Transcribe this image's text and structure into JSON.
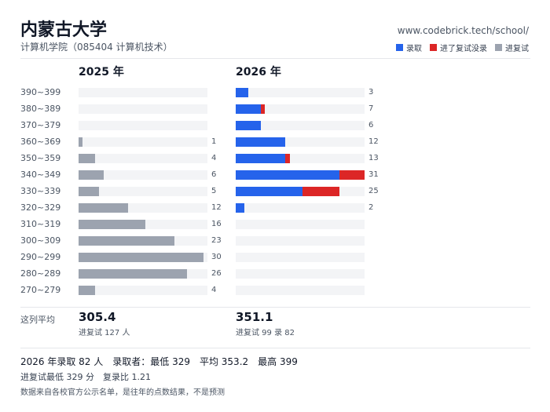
{
  "header": {
    "title": "内蒙古大学",
    "subtitle": "计算机学院（085404 计算机技术）",
    "site": "www.codebrick.tech/school/"
  },
  "legend": [
    {
      "label": "录取",
      "color": "#2563eb"
    },
    {
      "label": "进了复试没录",
      "color": "#dc2626"
    },
    {
      "label": "进复试",
      "color": "#9ca3af"
    }
  ],
  "chart_data": {
    "type": "bar",
    "orientation": "horizontal",
    "categories": [
      "390~399",
      "380~389",
      "370~379",
      "360~369",
      "350~359",
      "340~349",
      "330~339",
      "320~329",
      "310~319",
      "300~309",
      "290~299",
      "280~289",
      "270~279"
    ],
    "panels": [
      {
        "title": "2025 年",
        "series": [
          {
            "name": "进复试",
            "color": "#9ca3af",
            "values": [
              0,
              0,
              0,
              1,
              4,
              6,
              5,
              12,
              16,
              23,
              30,
              26,
              4
            ]
          }
        ],
        "totals": [
          0,
          0,
          0,
          1,
          4,
          6,
          5,
          12,
          16,
          23,
          30,
          26,
          4
        ],
        "xlim": [
          0,
          31
        ]
      },
      {
        "title": "2026 年",
        "series": [
          {
            "name": "录取",
            "color": "#2563eb",
            "values": [
              3,
              6,
              6,
              12,
              12,
              25,
              16,
              2,
              0,
              0,
              0,
              0,
              0
            ]
          },
          {
            "name": "进了复试没录",
            "color": "#dc2626",
            "values": [
              0,
              1,
              0,
              0,
              1,
              6,
              9,
              0,
              0,
              0,
              0,
              0,
              0
            ]
          }
        ],
        "totals": [
          3,
          7,
          6,
          12,
          13,
          31,
          25,
          2,
          0,
          0,
          0,
          0,
          0
        ],
        "xlim": [
          0,
          31
        ]
      }
    ]
  },
  "averages": {
    "label": "这列平均",
    "panels": [
      {
        "value": "305.4",
        "sub": "进复试 127 人"
      },
      {
        "value": "351.1",
        "sub": "进复试 99 录 82"
      }
    ]
  },
  "summary": {
    "line1": "2026 年录取 82 人　录取者：最低 329　平均 353.2　最高 399",
    "line2": "进复试最低 329 分　复录比 1.21",
    "note": "数据来自各校官方公示名单，是往年的点数结果，不是预测"
  }
}
